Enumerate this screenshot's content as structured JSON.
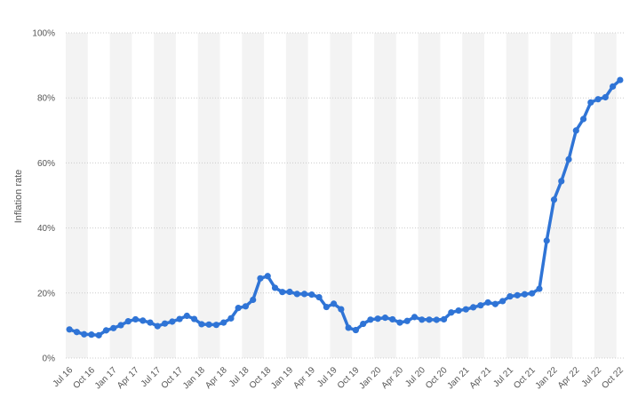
{
  "chart_data": {
    "type": "line",
    "title": "",
    "xlabel": "",
    "ylabel": "Inflation rate",
    "ylim": [
      0,
      100
    ],
    "y_ticks": [
      0,
      20,
      40,
      60,
      80,
      100
    ],
    "y_tick_labels": [
      "0%",
      "20%",
      "40%",
      "60%",
      "80%",
      "100%"
    ],
    "x_tick_labels": [
      "Jul 16",
      "Oct 16",
      "Jan 17",
      "Apr 17",
      "Jul 17",
      "Oct 17",
      "Jan 18",
      "Apr 18",
      "Jul 18",
      "Oct 18",
      "Jan 19",
      "Apr 19",
      "Jul 19",
      "Oct 19",
      "Jan 20",
      "Apr 20",
      "Jul 20",
      "Oct 20",
      "Jan 21",
      "Apr 21",
      "Jul 21",
      "Oct 21",
      "Jan 22",
      "Apr 22",
      "Jul 22",
      "Oct 22"
    ],
    "grid": true,
    "line_color": "#2f74d6",
    "band_color": "#f3f3f3",
    "x": [
      "Jul 16",
      "Aug 16",
      "Sep 16",
      "Oct 16",
      "Nov 16",
      "Dec 16",
      "Jan 17",
      "Feb 17",
      "Mar 17",
      "Apr 17",
      "May 17",
      "Jun 17",
      "Jul 17",
      "Aug 17",
      "Sep 17",
      "Oct 17",
      "Nov 17",
      "Dec 17",
      "Jan 18",
      "Feb 18",
      "Mar 18",
      "Apr 18",
      "May 18",
      "Jun 18",
      "Jul 18",
      "Aug 18",
      "Sep 18",
      "Oct 18",
      "Nov 18",
      "Dec 18",
      "Jan 19",
      "Feb 19",
      "Mar 19",
      "Apr 19",
      "May 19",
      "Jun 19",
      "Jul 19",
      "Aug 19",
      "Sep 19",
      "Oct 19",
      "Nov 19",
      "Dec 19",
      "Jan 20",
      "Feb 20",
      "Mar 20",
      "Apr 20",
      "May 20",
      "Jun 20",
      "Jul 20",
      "Aug 20",
      "Sep 20",
      "Oct 20",
      "Nov 20",
      "Dec 20",
      "Jan 21",
      "Feb 21",
      "Mar 21",
      "Apr 21",
      "May 21",
      "Jun 21",
      "Jul 21",
      "Aug 21",
      "Sep 21",
      "Oct 21",
      "Nov 21",
      "Dec 21",
      "Jan 22",
      "Feb 22",
      "Mar 22",
      "Apr 22",
      "May 22",
      "Jun 22",
      "Jul 22",
      "Aug 22",
      "Sep 22",
      "Oct 22"
    ],
    "series": [
      {
        "values": [
          8.8,
          8.0,
          7.3,
          7.2,
          7.0,
          8.5,
          9.2,
          10.1,
          11.3,
          11.9,
          11.5,
          10.9,
          9.8,
          10.6,
          11.2,
          12.0,
          12.98,
          12.0,
          10.4,
          10.3,
          10.2,
          10.9,
          12.2,
          15.4,
          15.9,
          17.9,
          24.5,
          25.2,
          21.6,
          20.3,
          20.35,
          19.7,
          19.7,
          19.5,
          18.7,
          15.7,
          16.7,
          15.0,
          9.3,
          8.6,
          10.5,
          11.8,
          12.1,
          12.4,
          11.9,
          10.9,
          11.4,
          12.6,
          11.8,
          11.8,
          11.75,
          11.9,
          14.0,
          14.6,
          14.97,
          15.6,
          16.2,
          17.1,
          16.6,
          17.5,
          18.95,
          19.3,
          19.6,
          19.9,
          21.3,
          36.1,
          48.7,
          54.4,
          61.1,
          69.97,
          73.5,
          78.6,
          79.6,
          80.2,
          83.5,
          85.5
        ]
      }
    ]
  }
}
